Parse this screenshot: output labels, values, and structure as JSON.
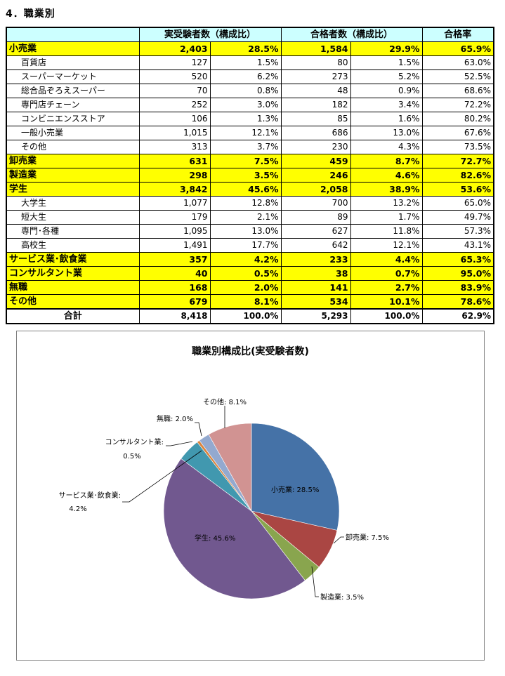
{
  "section_title": "4．職業別",
  "table": {
    "headers": [
      "",
      "実受験者数（構成比）",
      "合格者数（構成比）",
      "合格率"
    ],
    "rows": [
      {
        "type": "major",
        "label": "小売業",
        "examinees": "2,403",
        "examinees_pct": "28.5%",
        "passed": "1,584",
        "passed_pct": "29.9%",
        "rate": "65.9%"
      },
      {
        "type": "minor",
        "label": "百貨店",
        "examinees": "127",
        "examinees_pct": "1.5%",
        "passed": "80",
        "passed_pct": "1.5%",
        "rate": "63.0%"
      },
      {
        "type": "minor",
        "label": "スーパーマーケット",
        "examinees": "520",
        "examinees_pct": "6.2%",
        "passed": "273",
        "passed_pct": "5.2%",
        "rate": "52.5%"
      },
      {
        "type": "minor",
        "label": "総合品ぞろえスーパー",
        "examinees": "70",
        "examinees_pct": "0.8%",
        "passed": "48",
        "passed_pct": "0.9%",
        "rate": "68.6%"
      },
      {
        "type": "minor",
        "label": "専門店チェーン",
        "examinees": "252",
        "examinees_pct": "3.0%",
        "passed": "182",
        "passed_pct": "3.4%",
        "rate": "72.2%"
      },
      {
        "type": "minor",
        "label": "コンビニエンスストア",
        "examinees": "106",
        "examinees_pct": "1.3%",
        "passed": "85",
        "passed_pct": "1.6%",
        "rate": "80.2%"
      },
      {
        "type": "minor",
        "label": "一般小売業",
        "examinees": "1,015",
        "examinees_pct": "12.1%",
        "passed": "686",
        "passed_pct": "13.0%",
        "rate": "67.6%"
      },
      {
        "type": "minor",
        "label": "その他",
        "examinees": "313",
        "examinees_pct": "3.7%",
        "passed": "230",
        "passed_pct": "4.3%",
        "rate": "73.5%"
      },
      {
        "type": "major",
        "label": "卸売業",
        "examinees": "631",
        "examinees_pct": "7.5%",
        "passed": "459",
        "passed_pct": "8.7%",
        "rate": "72.7%"
      },
      {
        "type": "major",
        "label": "製造業",
        "examinees": "298",
        "examinees_pct": "3.5%",
        "passed": "246",
        "passed_pct": "4.6%",
        "rate": "82.6%"
      },
      {
        "type": "major",
        "label": "学生",
        "examinees": "3,842",
        "examinees_pct": "45.6%",
        "passed": "2,058",
        "passed_pct": "38.9%",
        "rate": "53.6%"
      },
      {
        "type": "minor",
        "label": "大学生",
        "examinees": "1,077",
        "examinees_pct": "12.8%",
        "passed": "700",
        "passed_pct": "13.2%",
        "rate": "65.0%"
      },
      {
        "type": "minor",
        "label": "短大生",
        "examinees": "179",
        "examinees_pct": "2.1%",
        "passed": "89",
        "passed_pct": "1.7%",
        "rate": "49.7%"
      },
      {
        "type": "minor",
        "label": "専門･各種",
        "examinees": "1,095",
        "examinees_pct": "13.0%",
        "passed": "627",
        "passed_pct": "11.8%",
        "rate": "57.3%"
      },
      {
        "type": "minor",
        "label": "高校生",
        "examinees": "1,491",
        "examinees_pct": "17.7%",
        "passed": "642",
        "passed_pct": "12.1%",
        "rate": "43.1%"
      },
      {
        "type": "major",
        "label": "サービス業･飲食業",
        "examinees": "357",
        "examinees_pct": "4.2%",
        "passed": "233",
        "passed_pct": "4.4%",
        "rate": "65.3%"
      },
      {
        "type": "major",
        "label": "コンサルタント業",
        "examinees": "40",
        "examinees_pct": "0.5%",
        "passed": "38",
        "passed_pct": "0.7%",
        "rate": "95.0%"
      },
      {
        "type": "major",
        "label": "無職",
        "examinees": "168",
        "examinees_pct": "2.0%",
        "passed": "141",
        "passed_pct": "2.7%",
        "rate": "83.9%"
      },
      {
        "type": "major",
        "label": "その他",
        "examinees": "679",
        "examinees_pct": "8.1%",
        "passed": "534",
        "passed_pct": "10.1%",
        "rate": "78.6%"
      },
      {
        "type": "total",
        "label": "合計",
        "examinees": "8,418",
        "examinees_pct": "100.0%",
        "passed": "5,293",
        "passed_pct": "100.0%",
        "rate": "62.9%"
      }
    ]
  },
  "colors": {
    "header_bg": "#ccffff",
    "highlight_bg": "#ffff00",
    "chart_border": "#808080"
  },
  "chart_data": {
    "type": "pie",
    "title": "職業別構成比(実受験者数)",
    "categories": [
      "小売業",
      "卸売業",
      "製造業",
      "学生",
      "サービス業･飲食業",
      "コンサルタント業",
      "無職",
      "その他"
    ],
    "values": [
      28.5,
      7.5,
      3.5,
      45.6,
      4.2,
      0.5,
      2.0,
      8.1
    ],
    "colors": [
      "#4572a7",
      "#aa4643",
      "#89a54e",
      "#71588f",
      "#4198af",
      "#db843d",
      "#93a9cf",
      "#d19392"
    ],
    "labels": [
      "小売業: 28.5%",
      "卸売業: 7.5%",
      "製造業: 3.5%",
      "学生: 45.6%",
      "サービス業･飲食業: 4.2%",
      "コンサルタント業: 0.5%",
      "無職: 2.0%",
      "その他: 8.1%"
    ],
    "label_lines": [
      {
        "name": "小売業",
        "text": "小売業: 28.5%"
      },
      {
        "name": "卸売業",
        "text": "卸売業: 7.5%"
      },
      {
        "name": "製造業",
        "text": "製造業: 3.5%"
      },
      {
        "name": "学生",
        "text": "学生: 45.6%"
      },
      {
        "name": "サービス業･飲食業",
        "line1": "サービス業･飲食業:",
        "line2": "4.2%"
      },
      {
        "name": "コンサルタント業",
        "line1": "コンサルタント業:",
        "line2": "0.5%"
      },
      {
        "name": "無職",
        "text": "無職: 2.0%"
      },
      {
        "name": "その他",
        "text": "その他: 8.1%"
      }
    ],
    "start_angle_deg": 0,
    "direction": "clockwise",
    "legend": "none"
  }
}
